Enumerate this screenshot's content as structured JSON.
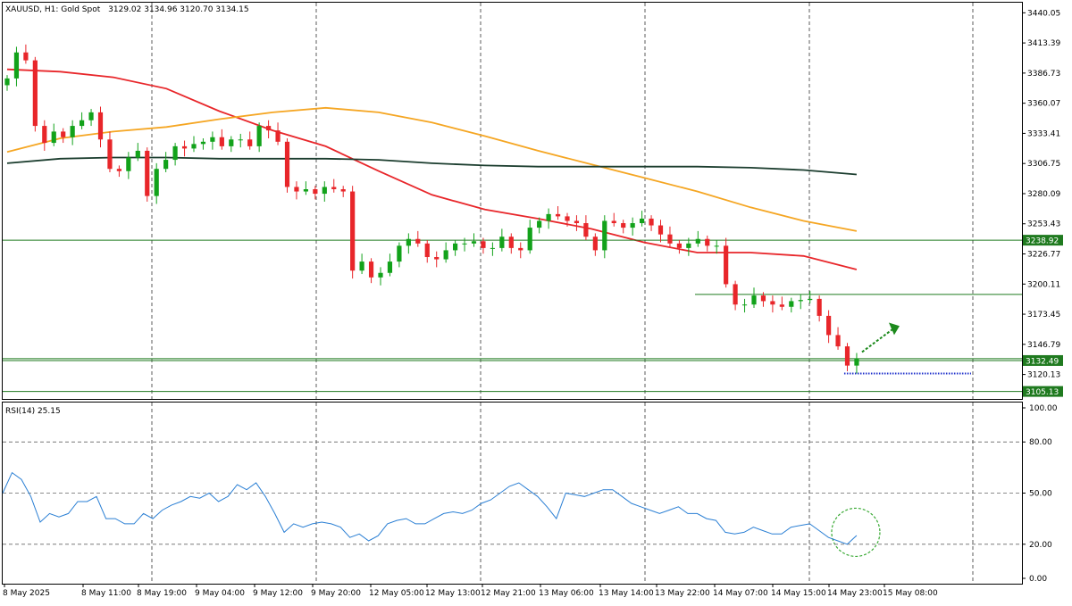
{
  "header": {
    "symbol": "XAUUSD, H1:  Gold Spot",
    "ohlc": "3129.02 3134.96 3120.70 3134.15"
  },
  "colors": {
    "bull": "#12a21a",
    "bear": "#e8262a",
    "ma_red": "#e8262a",
    "ma_orange": "#f5a623",
    "ma_dark": "#1b3d2e",
    "level": "#1f7a1f",
    "rsi": "#2a7fd4",
    "arrow": "#1d8a1d",
    "support_dots": "#2233cc",
    "circle": "#3aaa35"
  },
  "chart_data": [
    {
      "type": "line",
      "title": "XAUUSD, H1:  Gold Spot",
      "x_tick_labels": [
        "8 May 2025",
        "8 May 11:00",
        "8 May 19:00",
        "9 May 04:00",
        "9 May 12:00",
        "9 May 20:00",
        "12 May 05:00",
        "12 May 13:00",
        "12 May 21:00",
        "13 May 06:00",
        "13 May 14:00",
        "13 May 22:00",
        "14 May 07:00",
        "14 May 15:00",
        "14 May 23:00",
        "15 May 08:00"
      ],
      "y_tick_labels": [
        "3440.05",
        "3413.39",
        "3386.73",
        "3360.07",
        "3333.41",
        "3306.75",
        "3280.09",
        "3253.43",
        "3226.77",
        "3200.11",
        "3173.45",
        "3146.79",
        "3120.13"
      ],
      "ylim": [
        3098.5,
        3449.0
      ],
      "closes": [
        3382,
        3405,
        3398,
        3340,
        3325,
        3335,
        3330,
        3340,
        3345,
        3352,
        3328,
        3302,
        3300,
        3312,
        3318,
        3278,
        3302,
        3310,
        3322,
        3320,
        3324,
        3326,
        3330,
        3322,
        3328,
        3328,
        3322,
        3340,
        3336,
        3326,
        3286,
        3282,
        3284,
        3280,
        3286,
        3284,
        3282,
        3212,
        3220,
        3206,
        3210,
        3220,
        3234,
        3240,
        3236,
        3224,
        3222,
        3230,
        3236,
        3236,
        3238,
        3232,
        3232,
        3242,
        3232,
        3230,
        3250,
        3256,
        3262,
        3260,
        3256,
        3254,
        3242,
        3230,
        3256,
        3254,
        3250,
        3254,
        3258,
        3252,
        3244,
        3236,
        3232,
        3236,
        3240,
        3234,
        3234,
        3200,
        3182,
        3182,
        3190,
        3185,
        3182,
        3180,
        3185,
        3186,
        3187,
        3172,
        3155,
        3145,
        3128,
        3134.15
      ],
      "moving_averages": [
        {
          "color_key": "ma_red",
          "values": [
            3390,
            3388,
            3383,
            3373,
            3353,
            3336,
            3322,
            3300,
            3279,
            3266,
            3258,
            3249,
            3237,
            3228,
            3228,
            3225,
            3213
          ]
        },
        {
          "color_key": "ma_orange",
          "values": [
            3317,
            3329,
            3335,
            3339,
            3346,
            3352,
            3356,
            3352,
            3343,
            3331,
            3318,
            3306,
            3294,
            3282,
            3268,
            3256,
            3247
          ]
        },
        {
          "color_key": "ma_dark",
          "values": [
            3307,
            3311,
            3312,
            3312,
            3311,
            3311,
            3311,
            3310,
            3307,
            3305,
            3304,
            3304,
            3304,
            3304,
            3303,
            3301,
            3297
          ]
        }
      ],
      "price_levels": [
        {
          "value": 3238.92,
          "label": "3238.92"
        },
        {
          "value": 3191.0,
          "label": ""
        },
        {
          "value": 3134.15,
          "label": ""
        },
        {
          "value": 3132.49,
          "label": "3132.49"
        },
        {
          "value": 3105.13,
          "label": "3105.13"
        }
      ]
    },
    {
      "type": "line",
      "title": "RSI(14) 25.15",
      "y_tick_labels": [
        "100.00",
        "80.00",
        "50.00",
        "20.00",
        "0.00"
      ],
      "ylim": [
        0,
        100
      ],
      "guide_levels": [
        80,
        50,
        20
      ],
      "values": [
        50,
        62,
        58,
        48,
        33,
        38,
        36,
        38,
        45,
        45,
        48,
        35,
        35,
        32,
        32,
        38,
        35,
        40,
        43,
        45,
        48,
        47,
        50,
        45,
        48,
        55,
        52,
        56,
        48,
        38,
        27,
        32,
        30,
        32,
        33,
        32,
        30,
        24,
        26,
        22,
        25,
        32,
        34,
        35,
        32,
        32,
        35,
        38,
        39,
        38,
        40,
        44,
        46,
        50,
        54,
        56,
        52,
        48,
        42,
        35,
        50,
        49,
        48,
        50,
        52,
        52,
        48,
        44,
        42,
        40,
        38,
        40,
        42,
        38,
        38,
        35,
        34,
        27,
        26,
        27,
        30,
        28,
        26,
        26,
        30,
        31,
        32,
        28,
        24,
        22,
        20,
        25.15
      ]
    }
  ]
}
